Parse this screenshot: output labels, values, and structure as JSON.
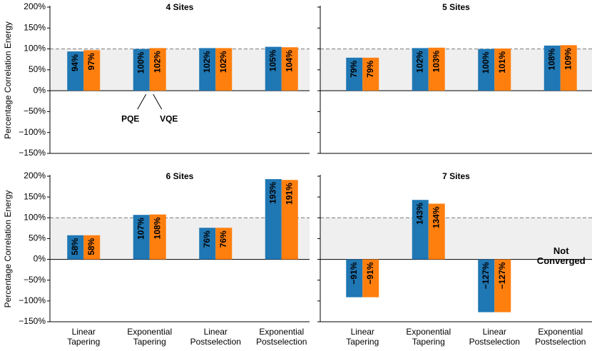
{
  "chart_data": [
    {
      "type": "bar",
      "title": "4 Sites",
      "y_label": "Percentage Correlation Energy",
      "series": [
        {
          "name": "PQE",
          "color": "#1f77b4",
          "values": [
            94,
            100,
            102,
            105
          ],
          "value_labels": [
            "94%",
            "100%",
            "102%",
            "105%"
          ]
        },
        {
          "name": "VQE",
          "color": "#ff7f0e",
          "values": [
            97,
            102,
            102,
            104
          ],
          "value_labels": [
            "97%",
            "102%",
            "102%",
            "104%"
          ]
        }
      ],
      "ylim": [
        -150,
        200
      ],
      "yticks": [
        {
          "value": -150,
          "label": "−150%"
        },
        {
          "value": -100,
          "label": "−100%"
        },
        {
          "value": -50,
          "label": "−50%"
        },
        {
          "value": 0,
          "label": "0%"
        },
        {
          "value": 50,
          "label": "50%"
        },
        {
          "value": 100,
          "label": "100%"
        },
        {
          "value": 150,
          "label": "150%"
        },
        {
          "value": 200,
          "label": "200%"
        }
      ],
      "reference_line": 100,
      "shaded_band": [
        0,
        100
      ]
    },
    {
      "type": "bar",
      "title": "5 Sites",
      "series": [
        {
          "color": "#1f77b4",
          "values": [
            79,
            102,
            100,
            108
          ],
          "value_labels": [
            "79%",
            "102%",
            "100%",
            "108%"
          ]
        },
        {
          "color": "#ff7f0e",
          "values": [
            79,
            103,
            101,
            109
          ],
          "value_labels": [
            "79%",
            "103%",
            "101%",
            "109%"
          ]
        }
      ],
      "ylim": [
        -150,
        200
      ],
      "yticks": [
        -150,
        -100,
        -50,
        0,
        50,
        100,
        150,
        200
      ],
      "reference_line": 100,
      "shaded_band": [
        0,
        100
      ]
    },
    {
      "type": "bar",
      "title": "6 Sites",
      "y_label": "Percentage Correlation Energy",
      "categories": [
        "Linear Tapering",
        "Exponential Tapering",
        "Linear Postselection",
        "Exponential Postselection"
      ],
      "series": [
        {
          "color": "#1f77b4",
          "values": [
            58,
            107,
            76,
            193
          ],
          "value_labels": [
            "58%",
            "107%",
            "76%",
            "193%"
          ]
        },
        {
          "color": "#ff7f0e",
          "values": [
            58,
            108,
            76,
            191
          ],
          "value_labels": [
            "58%",
            "108%",
            "76%",
            "191%"
          ]
        }
      ],
      "ylim": [
        -150,
        200
      ],
      "yticks": [
        {
          "value": -150,
          "label": "−150%"
        },
        {
          "value": -100,
          "label": "−100%"
        },
        {
          "value": -50,
          "label": "−50%"
        },
        {
          "value": 0,
          "label": "0%"
        },
        {
          "value": 50,
          "label": "50%"
        },
        {
          "value": 100,
          "label": "100%"
        },
        {
          "value": 150,
          "label": "150%"
        },
        {
          "value": 200,
          "label": "200%"
        }
      ],
      "reference_line": 100,
      "shaded_band": [
        0,
        100
      ]
    },
    {
      "type": "bar",
      "title": "7 Sites",
      "categories": [
        "Linear Tapering",
        "Exponential Tapering",
        "Linear Postselection",
        "Exponential Postselection"
      ],
      "series": [
        {
          "color": "#1f77b4",
          "values": [
            -91,
            143,
            -127,
            null
          ],
          "value_labels": [
            "−91%",
            "143%",
            "−127%",
            null
          ]
        },
        {
          "color": "#ff7f0e",
          "values": [
            -91,
            134,
            -127,
            null
          ],
          "value_labels": [
            "−91%",
            "134%",
            "−127%",
            null
          ]
        }
      ],
      "ylim": [
        -150,
        200
      ],
      "yticks": [
        -150,
        -100,
        -50,
        0,
        50,
        100,
        150,
        200
      ],
      "reference_line": 100,
      "shaded_band": [
        0,
        100
      ],
      "annotation": "Not Converged"
    }
  ]
}
